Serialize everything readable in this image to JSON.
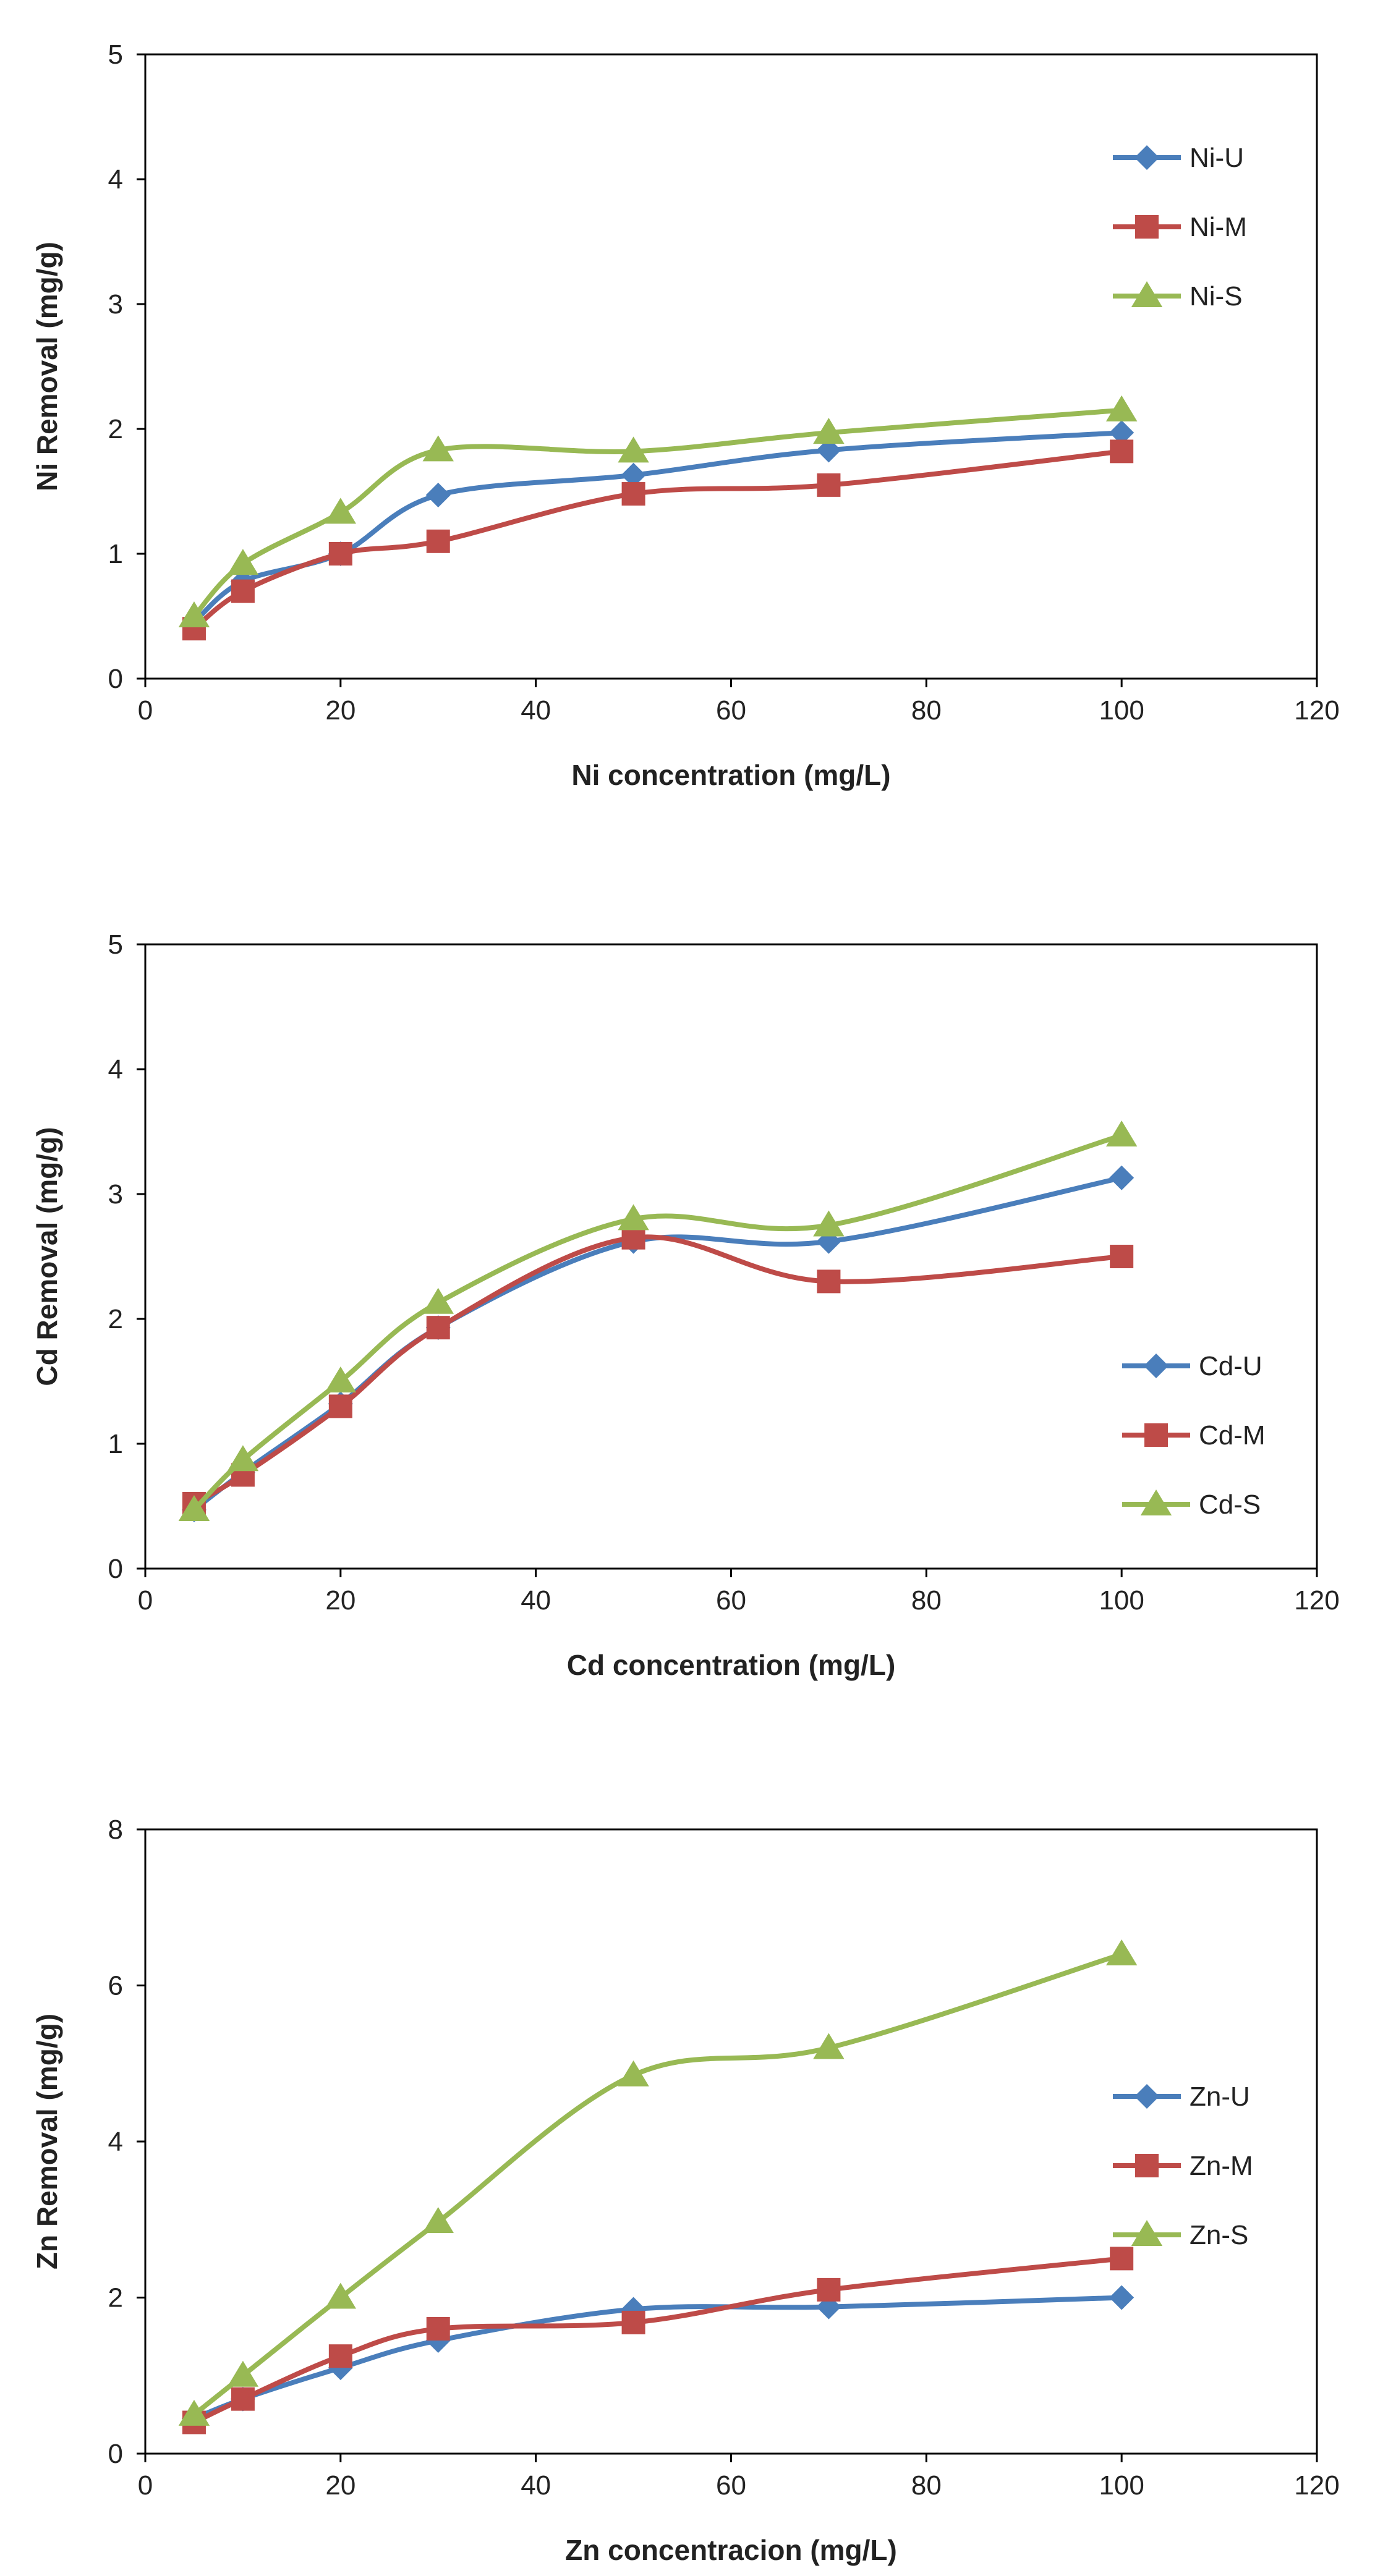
{
  "chart_data": [
    {
      "type": "line",
      "title": "",
      "xlabel": "Ni concentration (mg/L)",
      "ylabel": "Ni Removal (mg/g)",
      "xlim": [
        0,
        120
      ],
      "ylim": [
        0,
        5
      ],
      "xticks": [
        0,
        20,
        40,
        60,
        80,
        100,
        120
      ],
      "yticks": [
        0,
        1,
        2,
        3,
        4,
        5
      ],
      "grid": false,
      "legend_position": "top-right",
      "x": [
        5,
        10,
        20,
        30,
        50,
        70,
        100
      ],
      "series": [
        {
          "name": "Ni-U",
          "color": "#4a7ebb",
          "marker": "diamond",
          "values": [
            0.45,
            0.78,
            1.0,
            1.47,
            1.63,
            1.83,
            1.97
          ]
        },
        {
          "name": "Ni-M",
          "color": "#be4b48",
          "marker": "square",
          "values": [
            0.4,
            0.7,
            1.0,
            1.1,
            1.48,
            1.55,
            1.82
          ]
        },
        {
          "name": "Ni-S",
          "color": "#98b954",
          "marker": "triangle",
          "values": [
            0.5,
            0.92,
            1.33,
            1.83,
            1.82,
            1.97,
            2.15
          ]
        }
      ]
    },
    {
      "type": "line",
      "title": "",
      "xlabel": "Cd concentration (mg/L)",
      "ylabel": "Cd Removal (mg/g)",
      "xlim": [
        0,
        120
      ],
      "ylim": [
        0,
        5
      ],
      "xticks": [
        0,
        20,
        40,
        60,
        80,
        100,
        120
      ],
      "yticks": [
        0,
        1,
        2,
        3,
        4,
        5
      ],
      "grid": false,
      "legend_position": "bottom-right",
      "x": [
        5,
        10,
        20,
        30,
        50,
        70,
        100
      ],
      "series": [
        {
          "name": "Cd-U",
          "color": "#4a7ebb",
          "marker": "diamond",
          "values": [
            0.47,
            0.77,
            1.32,
            1.93,
            2.62,
            2.62,
            3.13
          ]
        },
        {
          "name": "Cd-M",
          "color": "#be4b48",
          "marker": "square",
          "values": [
            0.52,
            0.75,
            1.3,
            1.93,
            2.65,
            2.3,
            2.5
          ]
        },
        {
          "name": "Cd-S",
          "color": "#98b954",
          "marker": "triangle",
          "values": [
            0.47,
            0.87,
            1.5,
            2.13,
            2.8,
            2.75,
            3.47
          ]
        }
      ]
    },
    {
      "type": "line",
      "title": "",
      "xlabel": "Zn concentracion (mg/L)",
      "ylabel": "Zn Removal (mg/g)",
      "xlim": [
        0,
        120
      ],
      "ylim": [
        0,
        8
      ],
      "xticks": [
        0,
        20,
        40,
        60,
        80,
        100,
        120
      ],
      "yticks": [
        0,
        2,
        4,
        6,
        8
      ],
      "grid": false,
      "legend_position": "right",
      "x": [
        5,
        10,
        20,
        30,
        50,
        70,
        100
      ],
      "series": [
        {
          "name": "Zn-U",
          "color": "#4a7ebb",
          "marker": "diamond",
          "values": [
            0.45,
            0.7,
            1.1,
            1.45,
            1.85,
            1.88,
            2.0
          ]
        },
        {
          "name": "Zn-M",
          "color": "#be4b48",
          "marker": "square",
          "values": [
            0.4,
            0.7,
            1.25,
            1.6,
            1.68,
            2.1,
            2.5
          ]
        },
        {
          "name": "Zn-S",
          "color": "#98b954",
          "marker": "triangle",
          "values": [
            0.5,
            1.0,
            2.0,
            2.97,
            4.85,
            5.2,
            6.4
          ]
        }
      ]
    }
  ]
}
